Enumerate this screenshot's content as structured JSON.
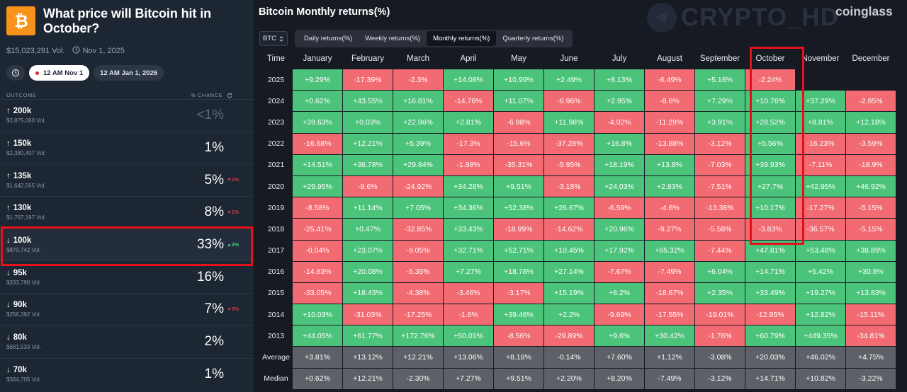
{
  "market": {
    "title": "What price will Bitcoin hit in October?",
    "volume": "$15,023,291 Vol.",
    "date": "Nov 1, 2025",
    "date_pills": [
      {
        "time": "12 AM",
        "day": "Nov 1"
      },
      {
        "time": "12 AM",
        "day": "Jan 1, 2026"
      }
    ],
    "col_outcome": "OUTCOME",
    "col_chance": "% CHANCE",
    "outcomes": [
      {
        "arrow": "↑",
        "label": "200k",
        "vol": "$2,875,080 Vol.",
        "pct": "<1%",
        "change": ""
      },
      {
        "arrow": "↑",
        "label": "150k",
        "vol": "$2,380,407 Vol.",
        "pct": "1%",
        "change": ""
      },
      {
        "arrow": "↑",
        "label": "135k",
        "vol": "$1,642,565 Vol.",
        "pct": "5%",
        "change": "▼1%"
      },
      {
        "arrow": "↑",
        "label": "130k",
        "vol": "$1,767,197 Vol.",
        "pct": "8%",
        "change": "▼1%"
      },
      {
        "arrow": "↓",
        "label": "100k",
        "vol": "$870,742 Vol.",
        "pct": "33%",
        "change": "▲3%"
      },
      {
        "arrow": "↓",
        "label": "95k",
        "vol": "$333,790 Vol.",
        "pct": "16%",
        "change": ""
      },
      {
        "arrow": "↓",
        "label": "90k",
        "vol": "$256,392 Vol.",
        "pct": "7%",
        "change": "▼3%"
      },
      {
        "arrow": "↓",
        "label": "80k",
        "vol": "$681,533 Vol.",
        "pct": "2%",
        "change": ""
      },
      {
        "arrow": "↓",
        "label": "70k",
        "vol": "$364,705 Vol.",
        "pct": "1%",
        "change": ""
      }
    ]
  },
  "returns": {
    "title": "Bitcoin Monthly returns(%)",
    "watermark": "CRYPTO_HD",
    "brand": "coinglass",
    "asset": "BTC",
    "tabs": [
      "Daily returns(%)",
      "Weekly returns(%)",
      "Monthly returns(%)",
      "Quarterly returns(%)"
    ],
    "active_tab": 2,
    "headers": [
      "Time",
      "January",
      "February",
      "March",
      "April",
      "May",
      "June",
      "July",
      "August",
      "September",
      "October",
      "November",
      "December"
    ],
    "rows": [
      {
        "year": "2025",
        "values": [
          "+9.29%",
          "-17.39%",
          "-2.3%",
          "+14.08%",
          "+10.99%",
          "+2.49%",
          "+8.13%",
          "-6.49%",
          "+5.16%",
          "-2.24%",
          "",
          ""
        ]
      },
      {
        "year": "2024",
        "values": [
          "+0.62%",
          "+43.55%",
          "+16.81%",
          "-14.76%",
          "+11.07%",
          "-6.96%",
          "+2.95%",
          "-8.6%",
          "+7.29%",
          "+10.76%",
          "+37.29%",
          "-2.85%"
        ]
      },
      {
        "year": "2023",
        "values": [
          "+39.63%",
          "+0.03%",
          "+22.96%",
          "+2.81%",
          "-6.98%",
          "+11.98%",
          "-4.02%",
          "-11.29%",
          "+3.91%",
          "+28.52%",
          "+8.81%",
          "+12.18%"
        ]
      },
      {
        "year": "2022",
        "values": [
          "-16.68%",
          "+12.21%",
          "+5.39%",
          "-17.3%",
          "-15.6%",
          "-37.28%",
          "+16.8%",
          "-13.88%",
          "-3.12%",
          "+5.56%",
          "-16.23%",
          "-3.59%"
        ]
      },
      {
        "year": "2021",
        "values": [
          "+14.51%",
          "+36.78%",
          "+29.84%",
          "-1.98%",
          "-35.31%",
          "-5.95%",
          "+18.19%",
          "+13.8%",
          "-7.03%",
          "+39.93%",
          "-7.11%",
          "-18.9%"
        ]
      },
      {
        "year": "2020",
        "values": [
          "+29.95%",
          "-8.6%",
          "-24.92%",
          "+34.26%",
          "+9.51%",
          "-3.18%",
          "+24.03%",
          "+2.83%",
          "-7.51%",
          "+27.7%",
          "+42.95%",
          "+46.92%"
        ]
      },
      {
        "year": "2019",
        "values": [
          "-8.58%",
          "+11.14%",
          "+7.05%",
          "+34.36%",
          "+52.38%",
          "+26.67%",
          "-6.59%",
          "-4.6%",
          "-13.38%",
          "+10.17%",
          "-17.27%",
          "-5.15%"
        ]
      },
      {
        "year": "2018",
        "values": [
          "-25.41%",
          "+0.47%",
          "-32.85%",
          "+33.43%",
          "-18.99%",
          "-14.62%",
          "+20.96%",
          "-9.27%",
          "-5.58%",
          "-3.83%",
          "-36.57%",
          "-5.15%"
        ]
      },
      {
        "year": "2017",
        "values": [
          "-0.04%",
          "+23.07%",
          "-9.05%",
          "+32.71%",
          "+52.71%",
          "+10.45%",
          "+17.92%",
          "+65.32%",
          "-7.44%",
          "+47.81%",
          "+53.48%",
          "+38.89%"
        ]
      },
      {
        "year": "2016",
        "values": [
          "-14.83%",
          "+20.08%",
          "-5.35%",
          "+7.27%",
          "+18.78%",
          "+27.14%",
          "-7.67%",
          "-7.49%",
          "+6.04%",
          "+14.71%",
          "+5.42%",
          "+30.8%"
        ]
      },
      {
        "year": "2015",
        "values": [
          "-33.05%",
          "+18.43%",
          "-4.38%",
          "-3.46%",
          "-3.17%",
          "+15.19%",
          "+8.2%",
          "-18.67%",
          "+2.35%",
          "+33.49%",
          "+19.27%",
          "+13.83%"
        ]
      },
      {
        "year": "2014",
        "values": [
          "+10.03%",
          "-31.03%",
          "-17.25%",
          "-1.6%",
          "+39.46%",
          "+2.2%",
          "-9.69%",
          "-17.55%",
          "-19.01%",
          "-12.95%",
          "+12.82%",
          "-15.11%"
        ]
      },
      {
        "year": "2013",
        "values": [
          "+44.05%",
          "+61.77%",
          "+172.76%",
          "+50.01%",
          "-8.56%",
          "-29.89%",
          "+9.6%",
          "+30.42%",
          "-1.76%",
          "+60.79%",
          "+449.35%",
          "-34.81%"
        ]
      }
    ],
    "summary": [
      {
        "label": "Average",
        "values": [
          "+3.81%",
          "+13.12%",
          "+12.21%",
          "+13.06%",
          "+8.18%",
          "-0.14%",
          "+7.60%",
          "+1.12%",
          "-3.08%",
          "+20.03%",
          "+46.02%",
          "+4.75%"
        ]
      },
      {
        "label": "Median",
        "values": [
          "+0.62%",
          "+12.21%",
          "-2.30%",
          "+7.27%",
          "+9.51%",
          "+2.20%",
          "+8.20%",
          "-7.49%",
          "-3.12%",
          "+14.71%",
          "+10.82%",
          "-3.22%"
        ]
      }
    ]
  },
  "colors": {
    "positive": "#4cc37a",
    "negative": "#f26a72",
    "summary": "#5d6167",
    "highlight": "#e4101a",
    "btc": "#f7931a"
  }
}
